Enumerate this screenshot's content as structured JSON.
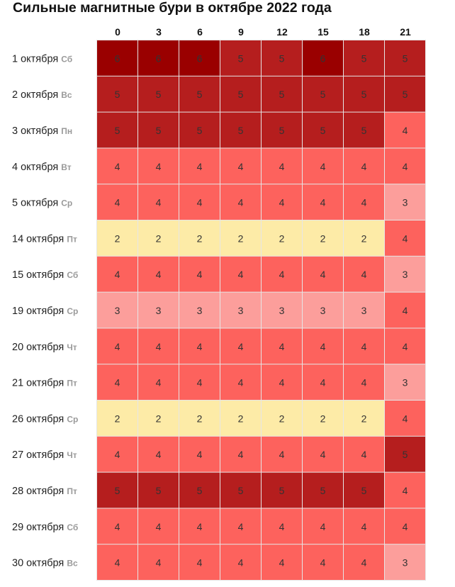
{
  "chart_data": {
    "type": "heatmap",
    "title": "Сильные магнитные бури в октябре 2022 года",
    "columns": [
      "0",
      "3",
      "6",
      "9",
      "12",
      "15",
      "18",
      "21"
    ],
    "rows": [
      {
        "date": "1 октября",
        "dow": "Сб",
        "values": [
          6,
          6,
          6,
          5,
          5,
          6,
          5,
          5
        ]
      },
      {
        "date": "2 октября",
        "dow": "Вс",
        "values": [
          5,
          5,
          5,
          5,
          5,
          5,
          5,
          5
        ]
      },
      {
        "date": "3 октября",
        "dow": "Пн",
        "values": [
          5,
          5,
          5,
          5,
          5,
          5,
          5,
          4
        ]
      },
      {
        "date": "4 октября",
        "dow": "Вт",
        "values": [
          4,
          4,
          4,
          4,
          4,
          4,
          4,
          4
        ]
      },
      {
        "date": "5 октября",
        "dow": "Ср",
        "values": [
          4,
          4,
          4,
          4,
          4,
          4,
          4,
          3
        ]
      },
      {
        "date": "14 октября",
        "dow": "Пт",
        "values": [
          2,
          2,
          2,
          2,
          2,
          2,
          2,
          4
        ]
      },
      {
        "date": "15 октября",
        "dow": "Сб",
        "values": [
          4,
          4,
          4,
          4,
          4,
          4,
          4,
          3
        ]
      },
      {
        "date": "19 октября",
        "dow": "Ср",
        "values": [
          3,
          3,
          3,
          3,
          3,
          3,
          3,
          4
        ]
      },
      {
        "date": "20 октября",
        "dow": "Чт",
        "values": [
          4,
          4,
          4,
          4,
          4,
          4,
          4,
          4
        ]
      },
      {
        "date": "21 октября",
        "dow": "Пт",
        "values": [
          4,
          4,
          4,
          4,
          4,
          4,
          4,
          3
        ]
      },
      {
        "date": "26 октября",
        "dow": "Ср",
        "values": [
          2,
          2,
          2,
          2,
          2,
          2,
          2,
          4
        ]
      },
      {
        "date": "27 октября",
        "dow": "Чт",
        "values": [
          4,
          4,
          4,
          4,
          4,
          4,
          4,
          5
        ]
      },
      {
        "date": "28 октября",
        "dow": "Пт",
        "values": [
          5,
          5,
          5,
          5,
          5,
          5,
          5,
          4
        ]
      },
      {
        "date": "29 октября",
        "dow": "Сб",
        "values": [
          4,
          4,
          4,
          4,
          4,
          4,
          4,
          4
        ]
      },
      {
        "date": "30 октября",
        "dow": "Вс",
        "values": [
          4,
          4,
          4,
          4,
          4,
          4,
          4,
          3
        ]
      }
    ],
    "color_scale": {
      "2": "#fdeba7",
      "3": "#fc9e9b",
      "4": "#fd625d",
      "5": "#b51e1e",
      "6": "#9a0000"
    },
    "grid_color": "#e6e6e6"
  }
}
